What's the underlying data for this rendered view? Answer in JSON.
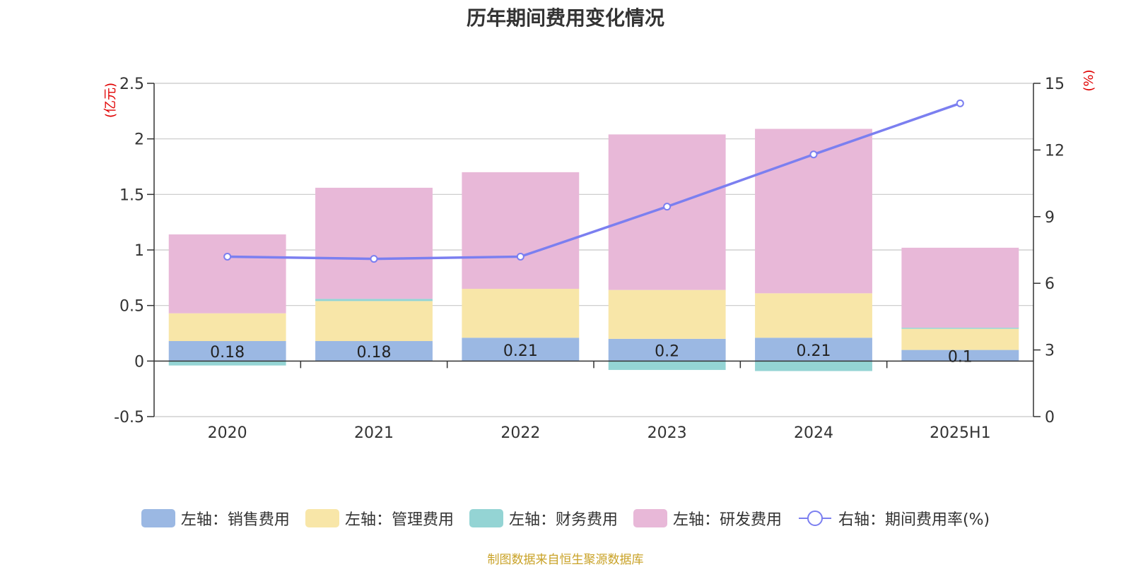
{
  "chart_data": {
    "type": "bar",
    "title": "历年期间费用变化情况",
    "categories": [
      "2020",
      "2021",
      "2022",
      "2023",
      "2024",
      "2025H1"
    ],
    "stacked": true,
    "left_axis": {
      "unit": "(亿元)",
      "ylim": [
        -0.5,
        2.5
      ],
      "ticks": [
        "-0.5",
        "0",
        "0.5",
        "1",
        "1.5",
        "2",
        "2.5"
      ],
      "tick_values": [
        -0.5,
        0,
        0.5,
        1,
        1.5,
        2,
        2.5
      ]
    },
    "right_axis": {
      "unit": "(%)",
      "ylim": [
        0,
        15
      ],
      "ticks": [
        "0",
        "3",
        "6",
        "9",
        "12",
        "15"
      ],
      "tick_values": [
        0,
        3,
        6,
        9,
        12,
        15
      ]
    },
    "grid": true,
    "legend_position": "bottom",
    "series": [
      {
        "name": "左轴：销售费用",
        "type": "bar",
        "axis": "left",
        "color": "#9bb8e3",
        "values": [
          0.18,
          0.18,
          0.21,
          0.2,
          0.21,
          0.1
        ],
        "labels": [
          "0.18",
          "0.18",
          "0.21",
          "0.2",
          "0.21",
          "0.1"
        ]
      },
      {
        "name": "左轴：管理费用",
        "type": "bar",
        "axis": "left",
        "color": "#f8e6a8",
        "values": [
          0.25,
          0.36,
          0.44,
          0.44,
          0.4,
          0.19
        ]
      },
      {
        "name": "左轴：财务费用",
        "type": "bar",
        "axis": "left",
        "color": "#94d4d4",
        "values": [
          -0.04,
          0.02,
          0.0,
          -0.08,
          -0.09,
          0.01
        ]
      },
      {
        "name": "左轴：研发费用",
        "type": "bar",
        "axis": "left",
        "color": "#e8b8d8",
        "values": [
          0.71,
          1.0,
          1.05,
          1.4,
          1.48,
          0.72
        ]
      },
      {
        "name": "右轴：期间费用率(%)",
        "type": "line",
        "axis": "right",
        "color": "#7b7ff0",
        "values": [
          7.2,
          7.1,
          7.2,
          9.45,
          11.8,
          14.1
        ]
      }
    ]
  },
  "source": "制图数据来自恒生聚源数据库"
}
